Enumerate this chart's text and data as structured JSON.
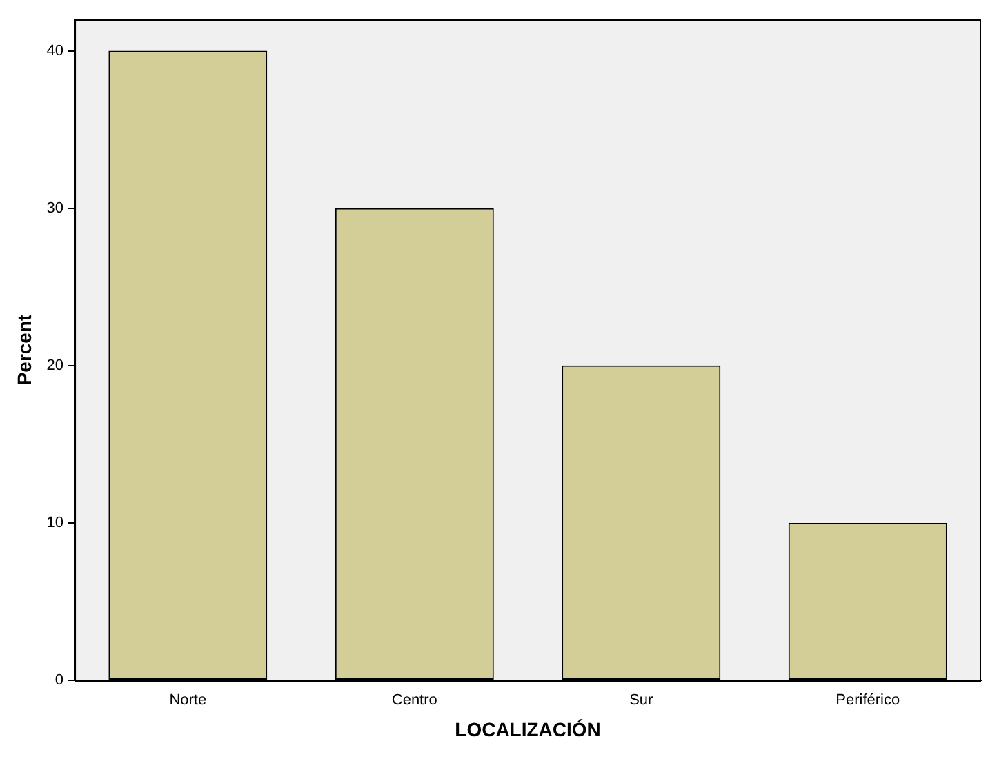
{
  "chart_data": {
    "type": "bar",
    "xlabel": "LOCALIZACIÓN",
    "ylabel": "Percent",
    "categories": [
      "Norte",
      "Centro",
      "Sur",
      "Periférico"
    ],
    "values": [
      40,
      30,
      20,
      10
    ],
    "color": "#d3ce97",
    "ylim": [
      0,
      42
    ],
    "yticks": [
      0,
      10,
      20,
      30,
      40
    ],
    "grid": false,
    "legend": false
  }
}
